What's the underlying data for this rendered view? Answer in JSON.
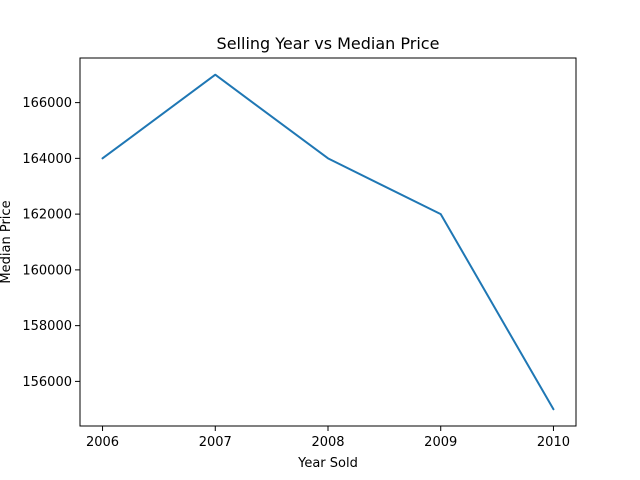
{
  "chart_data": {
    "type": "line",
    "title": "Selling Year vs Median Price",
    "xlabel": "Year Sold",
    "ylabel": "Median Price",
    "x": [
      2006,
      2007,
      2008,
      2009,
      2010
    ],
    "series": [
      {
        "values": [
          164000,
          167000,
          164000,
          162000,
          155000
        ]
      }
    ],
    "xticks": [
      "2006",
      "2007",
      "2008",
      "2009",
      "2010"
    ],
    "yticks": [
      "156000",
      "158000",
      "160000",
      "162000",
      "164000",
      "166000"
    ],
    "xlim": [
      2005.8,
      2010.2
    ],
    "ylim": [
      154400,
      167600
    ],
    "grid": false,
    "colors": {
      "line": "#1f77b4",
      "axes": "#000000",
      "background": "#ffffff"
    }
  }
}
